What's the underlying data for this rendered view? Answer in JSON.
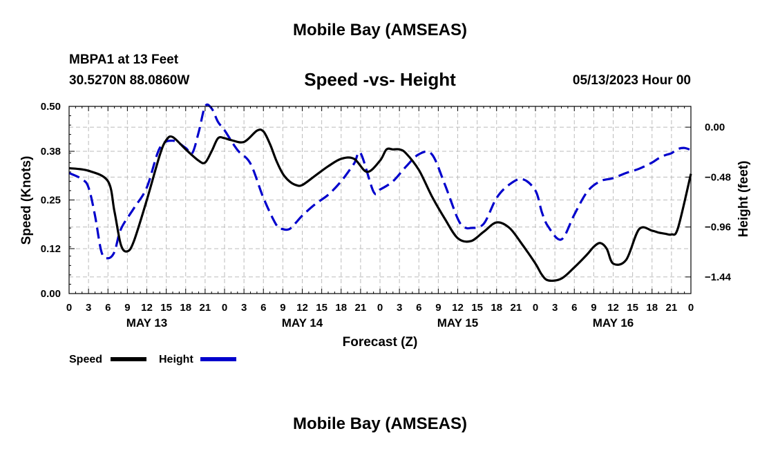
{
  "header": {
    "title": "Mobile Bay (AMSEAS)",
    "station": "MBPA1 at 13 Feet",
    "coords": "30.5270N  88.0860W",
    "subtitle": "Speed -vs- Height",
    "datetime": "05/13/2023 Hour 00"
  },
  "footer": {
    "title": "Mobile Bay (AMSEAS)"
  },
  "chart_data": {
    "type": "line",
    "title": "Speed -vs- Height",
    "xlabel": "Forecast (Z)",
    "ylabel": "Speed (Knots)",
    "y2label": "Height (feet)",
    "x_range": [
      0,
      96
    ],
    "ylim": [
      0,
      0.5
    ],
    "y2lim": [
      -1.6,
      0.2
    ],
    "x_ticks": [
      0,
      3,
      6,
      9,
      12,
      15,
      18,
      21,
      24,
      27,
      30,
      33,
      36,
      39,
      42,
      45,
      48,
      51,
      54,
      57,
      60,
      63,
      66,
      69,
      72,
      75,
      78,
      81,
      84,
      87,
      90,
      93,
      96
    ],
    "x_tick_labels": [
      "0",
      "3",
      "6",
      "9",
      "12",
      "15",
      "18",
      "21",
      "0",
      "3",
      "6",
      "9",
      "12",
      "15",
      "18",
      "21",
      "0",
      "3",
      "6",
      "9",
      "12",
      "15",
      "18",
      "21",
      "0",
      "3",
      "6",
      "9",
      "12",
      "15",
      "18",
      "21",
      "0"
    ],
    "day_labels": [
      {
        "x": 12,
        "label": "MAY 13"
      },
      {
        "x": 36,
        "label": "MAY 14"
      },
      {
        "x": 60,
        "label": "MAY 15"
      },
      {
        "x": 84,
        "label": "MAY 16"
      }
    ],
    "y_ticks": [
      0.0,
      0.12,
      0.25,
      0.38,
      0.5
    ],
    "y_tick_labels": [
      "0.00",
      "0.12",
      "0.25",
      "0.38",
      "0.50"
    ],
    "y2_ticks": [
      0.0,
      -0.48,
      -0.96,
      -1.44
    ],
    "y2_tick_labels": [
      "0.00",
      "−0.48",
      "−0.96",
      "−1.44"
    ],
    "grid": true,
    "series": [
      {
        "name": "Speed",
        "axis": "left",
        "color": "#000000",
        "dash": "solid",
        "x": [
          0,
          3,
          6,
          7,
          8,
          9,
          10,
          12,
          14,
          15,
          16,
          18,
          20,
          21,
          22,
          23,
          24,
          25,
          27,
          29,
          30,
          31,
          32,
          33,
          34,
          35,
          36,
          38,
          40,
          42,
          44,
          46,
          48,
          49,
          50,
          51,
          52,
          54,
          56,
          58,
          60,
          62,
          64,
          66,
          68,
          70,
          72,
          73,
          74,
          76,
          78,
          80,
          81,
          82,
          83,
          84,
          86,
          88,
          90,
          91,
          92,
          93,
          94,
          96
        ],
        "values": [
          0.335,
          0.328,
          0.3,
          0.22,
          0.13,
          0.113,
          0.14,
          0.25,
          0.37,
          0.41,
          0.418,
          0.385,
          0.355,
          0.35,
          0.38,
          0.415,
          0.415,
          0.41,
          0.405,
          0.435,
          0.433,
          0.4,
          0.355,
          0.32,
          0.3,
          0.29,
          0.29,
          0.315,
          0.34,
          0.36,
          0.36,
          0.325,
          0.355,
          0.385,
          0.385,
          0.385,
          0.375,
          0.33,
          0.26,
          0.2,
          0.148,
          0.14,
          0.165,
          0.19,
          0.175,
          0.13,
          0.08,
          0.05,
          0.035,
          0.04,
          0.07,
          0.105,
          0.125,
          0.135,
          0.12,
          0.08,
          0.09,
          0.172,
          0.168,
          0.163,
          0.16,
          0.158,
          0.175,
          0.32
        ]
      },
      {
        "name": "Height",
        "axis": "right",
        "color": "#0000cc",
        "dash": "dashed",
        "x": [
          0,
          2,
          3,
          4,
          5,
          6,
          7,
          8,
          10,
          12,
          14,
          16,
          18,
          19,
          20,
          21,
          22,
          23,
          24,
          26,
          28,
          30,
          32,
          33,
          34,
          35,
          36,
          38,
          40,
          42,
          44,
          45,
          47,
          48,
          50,
          52,
          54,
          56,
          58,
          60,
          61,
          62,
          64,
          66,
          68,
          70,
          72,
          73,
          74,
          76,
          78,
          80,
          82,
          84,
          86,
          88,
          90,
          91,
          92,
          93,
          94,
          95,
          96
        ],
        "values": [
          -0.44,
          -0.5,
          -0.58,
          -0.85,
          -1.2,
          -1.26,
          -1.2,
          -0.98,
          -0.78,
          -0.58,
          -0.2,
          -0.13,
          -0.2,
          -0.25,
          -0.05,
          0.2,
          0.18,
          0.05,
          -0.03,
          -0.22,
          -0.35,
          -0.68,
          -0.94,
          -0.98,
          -0.98,
          -0.92,
          -0.85,
          -0.74,
          -0.65,
          -0.52,
          -0.35,
          -0.25,
          -0.62,
          -0.6,
          -0.52,
          -0.38,
          -0.26,
          -0.26,
          -0.55,
          -0.88,
          -0.96,
          -0.97,
          -0.93,
          -0.68,
          -0.55,
          -0.5,
          -0.61,
          -0.82,
          -0.96,
          -1.08,
          -0.84,
          -0.62,
          -0.52,
          -0.49,
          -0.44,
          -0.4,
          -0.34,
          -0.3,
          -0.27,
          -0.25,
          -0.21,
          -0.2,
          -0.22
        ]
      }
    ],
    "legend": [
      {
        "label": "Speed",
        "color": "#000000",
        "dash": "solid"
      },
      {
        "label": "Height",
        "color": "#0000cc",
        "dash": "dashed"
      }
    ],
    "legend_position": "bottom-left"
  }
}
